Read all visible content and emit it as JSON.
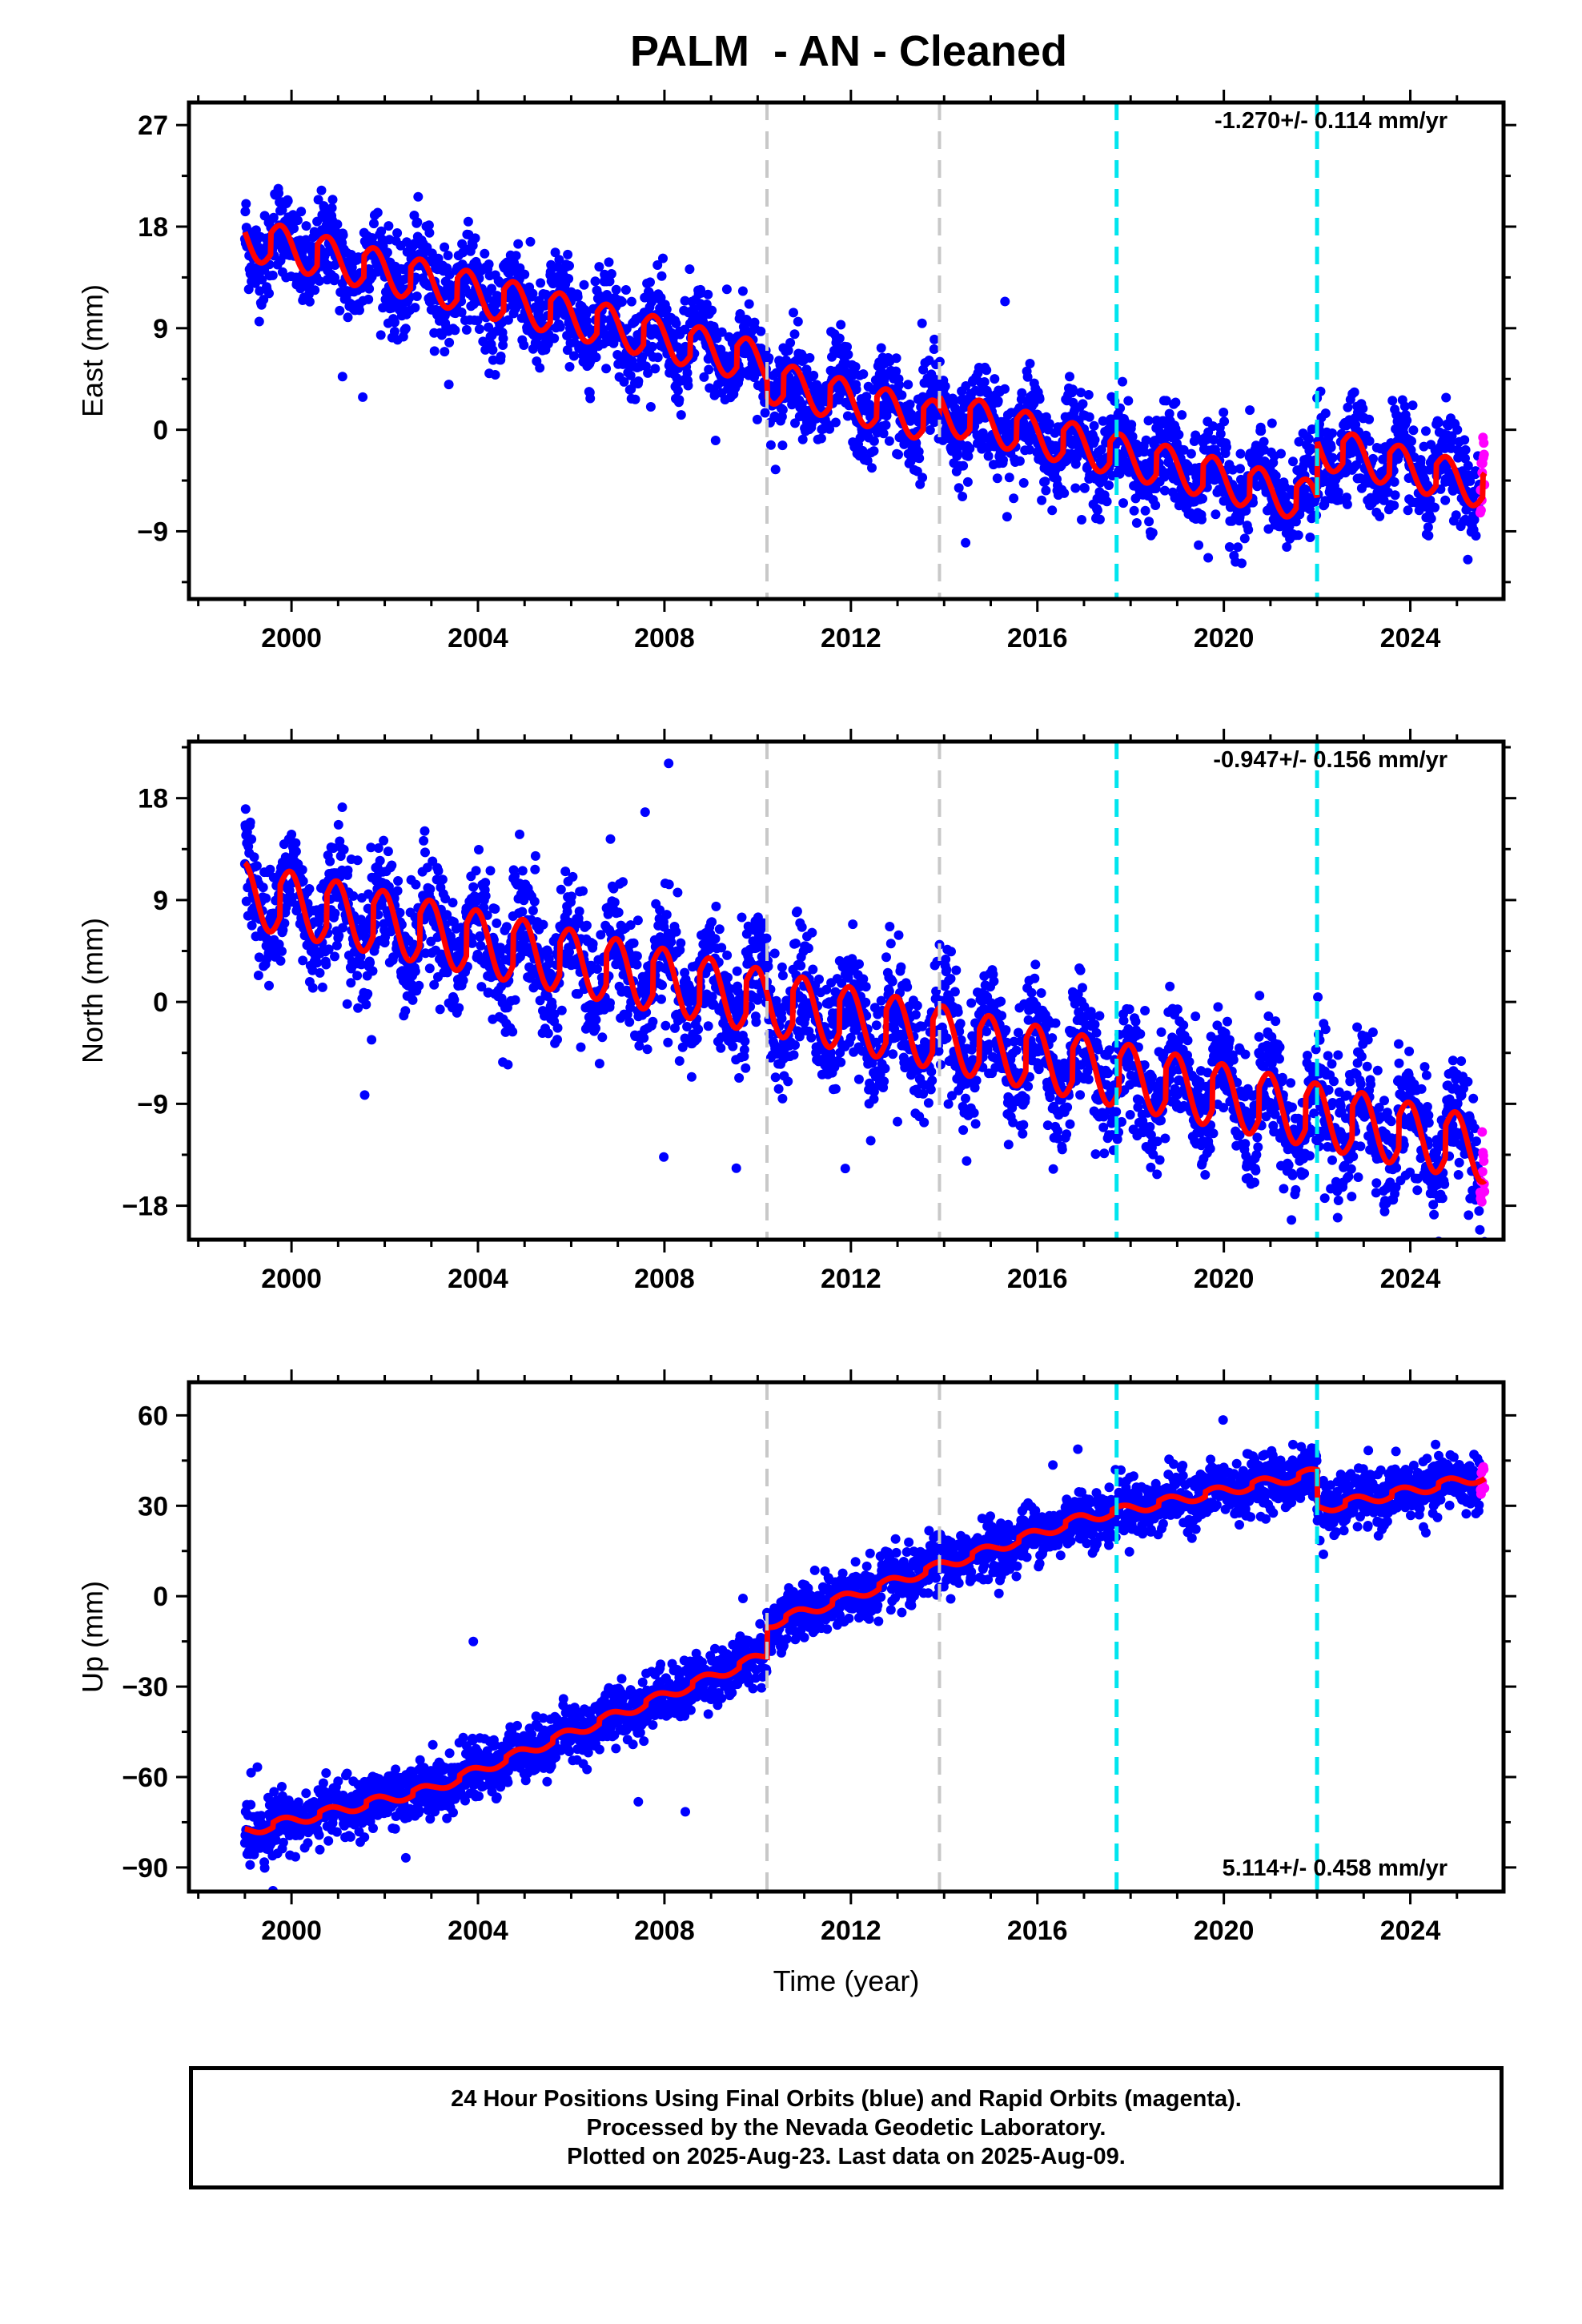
{
  "chart_data": {
    "type": "scatter",
    "title": "PALM  - AN - Cleaned",
    "xlabel": "Time (year)",
    "x_tick_labels": [
      "2000",
      "2004",
      "2008",
      "2012",
      "2016",
      "2020",
      "2024"
    ],
    "x_ticks": [
      2000,
      2004,
      2008,
      2012,
      2016,
      2020,
      2024
    ],
    "xlim": [
      1997.8,
      2026.0
    ],
    "data_start_year": 1999.0,
    "data_end_year": 2025.6,
    "rapid_orbit_start_year": 2025.5,
    "equipment_change_years_gray": [
      2010.2,
      2013.9
    ],
    "equipment_change_years_cyan": [
      2017.7,
      2022.0
    ],
    "colors": {
      "final_orbits": "#0000ff",
      "rapid_orbits": "#ff00ff",
      "model": "#ff0000",
      "gray_line": "#c8c8c8",
      "cyan_line": "#00e5ee",
      "frame": "#000000"
    },
    "panels": [
      {
        "ylabel": "East (mm)",
        "ylim": [
          -15,
          29
        ],
        "y_ticks": [
          27,
          18,
          9,
          0,
          -9
        ],
        "y_tick_labels": [
          "27",
          "18",
          "9",
          "0",
          "−9"
        ],
        "rate_text": "-1.270+/- 0.114 mm/yr",
        "model": {
          "start_value": 17.0,
          "rate_mm_per_yr": -1.0,
          "annual_amplitude": 2.3,
          "annual_phase_year": 0.55,
          "scatter_mm": 2.0,
          "offsets": [
            {
              "year": 2010.2,
              "mm": -1.5
            },
            {
              "year": 2013.9,
              "mm": 1.0
            },
            {
              "year": 2022.0,
              "mm": 5.0
            }
          ]
        }
      },
      {
        "ylabel": "North (mm)",
        "ylim": [
          -21,
          23
        ],
        "y_ticks": [
          18,
          9,
          0,
          -9,
          -18
        ],
        "y_tick_labels": [
          "18",
          "9",
          "0",
          "−9",
          "−18"
        ],
        "rate_text": "-0.947+/- 0.156 mm/yr",
        "model": {
          "start_value": 9.5,
          "rate_mm_per_yr": -0.85,
          "annual_amplitude": 3.5,
          "annual_phase_year": 0.75,
          "scatter_mm": 2.6,
          "offsets": []
        }
      },
      {
        "ylabel": "Up (mm)",
        "ylim": [
          -98,
          71
        ],
        "y_ticks": [
          60,
          30,
          0,
          -30,
          -60,
          -90
        ],
        "y_tick_labels": [
          "60",
          "30",
          "0",
          "−30",
          "−60",
          "−90"
        ],
        "rate_text": "5.114+/- 0.458 mm/yr",
        "model": {
          "start_value": -78.0,
          "rate_mm_per_yr": 5.114,
          "annual_amplitude": 2.0,
          "annual_phase_year": 0.6,
          "scatter_mm": 4.5,
          "offsets": [
            {
              "year": 2010.2,
              "mm": 10.0
            },
            {
              "year": 2022.0,
              "mm": -12.0
            }
          ],
          "curvature": [
            {
              "until": 2003.0,
              "rate": 3.5
            },
            {
              "until": 2010.2,
              "rate": 6.2
            },
            {
              "until": 2017.0,
              "rate": 5.2
            },
            {
              "until": 2026.0,
              "rate": 3.0
            }
          ]
        }
      }
    ]
  },
  "footer": {
    "line1": "24 Hour Positions Using Final Orbits (blue) and Rapid Orbits (magenta).",
    "line2": "Processed by the Nevada Geodetic Laboratory.",
    "line3": "Plotted on 2025-Aug-23. Last data on 2025-Aug-09."
  }
}
